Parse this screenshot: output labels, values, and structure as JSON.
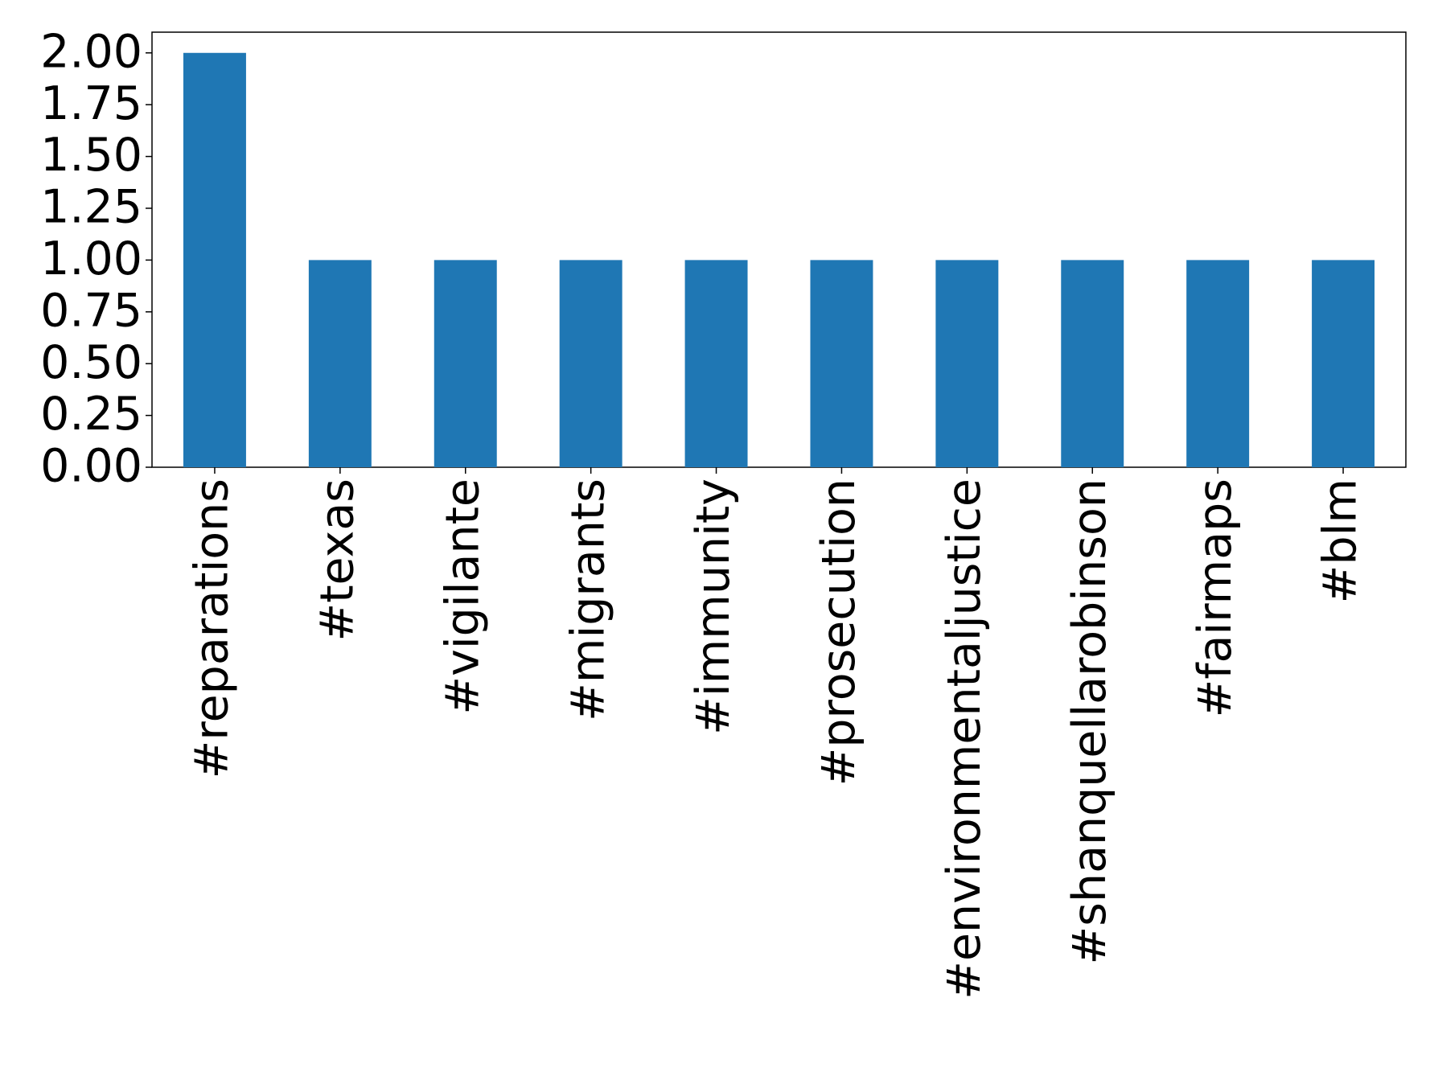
{
  "chart_data": {
    "type": "bar",
    "categories": [
      "#reparations",
      "#texas",
      "#vigilante",
      "#migrants",
      "#immunity",
      "#prosecution",
      "#environmentaljustice",
      "#shanquellarobinson",
      "#fairmaps",
      "#blm"
    ],
    "values": [
      2,
      1,
      1,
      1,
      1,
      1,
      1,
      1,
      1,
      1
    ],
    "color": "#1f77b4",
    "ylim": [
      0,
      2.1
    ],
    "yticks": [
      {
        "value": 0,
        "label": "0.00"
      },
      {
        "value": 0.25,
        "label": "0.25"
      },
      {
        "value": 0.5,
        "label": "0.50"
      },
      {
        "value": 0.75,
        "label": "0.75"
      },
      {
        "value": 1,
        "label": "1.00"
      },
      {
        "value": 1.25,
        "label": "1.25"
      },
      {
        "value": 1.5,
        "label": "1.50"
      },
      {
        "value": 1.75,
        "label": "1.75"
      },
      {
        "value": 2,
        "label": "2.00"
      }
    ],
    "grid": false
  }
}
